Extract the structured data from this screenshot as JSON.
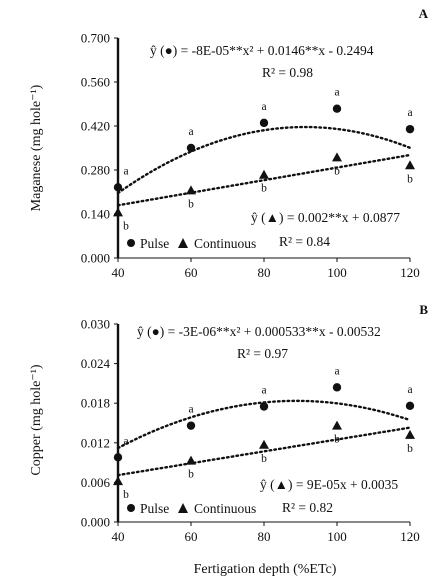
{
  "chart_data": [
    {
      "type": "scatter",
      "panel_label": "A",
      "ylabel": "Maganese (mg hole⁻¹)",
      "xlabel": "",
      "x": [
        40,
        60,
        80,
        100,
        120
      ],
      "xlim": [
        40,
        120
      ],
      "ylim": [
        0,
        0.7
      ],
      "xticks": [
        "40",
        "60",
        "80",
        "100",
        "120"
      ],
      "yticks": [
        "0.000",
        "0.140",
        "0.280",
        "0.420",
        "0.560",
        "0.700"
      ],
      "grid": false,
      "legend_position": "bottom-left",
      "series": [
        {
          "name": "Pulse",
          "marker": "circle",
          "values": [
            0.225,
            0.35,
            0.43,
            0.475,
            0.41
          ],
          "letters": [
            "a",
            "a",
            "a",
            "a",
            "a"
          ],
          "fit": {
            "a": -8e-05,
            "b": 0.0146,
            "c": -0.2494
          },
          "equation": "ŷ (●) = -8E-05**x² + 0.0146**x - 0.2494",
          "r2": "R² = 0.98"
        },
        {
          "name": "Continuous",
          "marker": "triangle",
          "values": [
            0.145,
            0.215,
            0.265,
            0.32,
            0.295
          ],
          "letters": [
            "b",
            "b",
            "b",
            "b",
            "b"
          ],
          "fit": {
            "a": 0,
            "b": 0.002,
            "c": 0.0877
          },
          "equation": "ŷ (▲) = 0.002**x + 0.0877",
          "r2": "R² = 0.84"
        }
      ]
    },
    {
      "type": "scatter",
      "panel_label": "B",
      "ylabel": "Copper (mg hole⁻¹)",
      "xlabel": "Fertigation depth (%ETc)",
      "x": [
        40,
        60,
        80,
        100,
        120
      ],
      "xlim": [
        40,
        120
      ],
      "ylim": [
        0,
        0.03
      ],
      "xticks": [
        "40",
        "60",
        "80",
        "100",
        "120"
      ],
      "yticks": [
        "0.000",
        "0.006",
        "0.012",
        "0.018",
        "0.024",
        "0.030"
      ],
      "grid": false,
      "legend_position": "bottom-left",
      "series": [
        {
          "name": "Pulse",
          "marker": "circle",
          "values": [
            0.0098,
            0.0146,
            0.0175,
            0.0204,
            0.0176
          ],
          "letters": [
            "a",
            "a",
            "a",
            "a",
            "a"
          ],
          "fit": {
            "a": -3e-06,
            "b": 0.000533,
            "c": -0.00532
          },
          "equation": "ŷ (●) = -3E-06**x² + 0.000533**x - 0.00532",
          "r2": "R² = 0.97"
        },
        {
          "name": "Continuous",
          "marker": "triangle",
          "values": [
            0.0062,
            0.0093,
            0.0117,
            0.0146,
            0.0132
          ],
          "letters": [
            "b",
            "b",
            "b",
            "b",
            "b"
          ],
          "fit": {
            "a": 0,
            "b": 9e-05,
            "c": 0.0035
          },
          "equation": "ŷ (▲) = 9E-05x + 0.0035",
          "r2": "R² = 0.82"
        }
      ]
    }
  ]
}
